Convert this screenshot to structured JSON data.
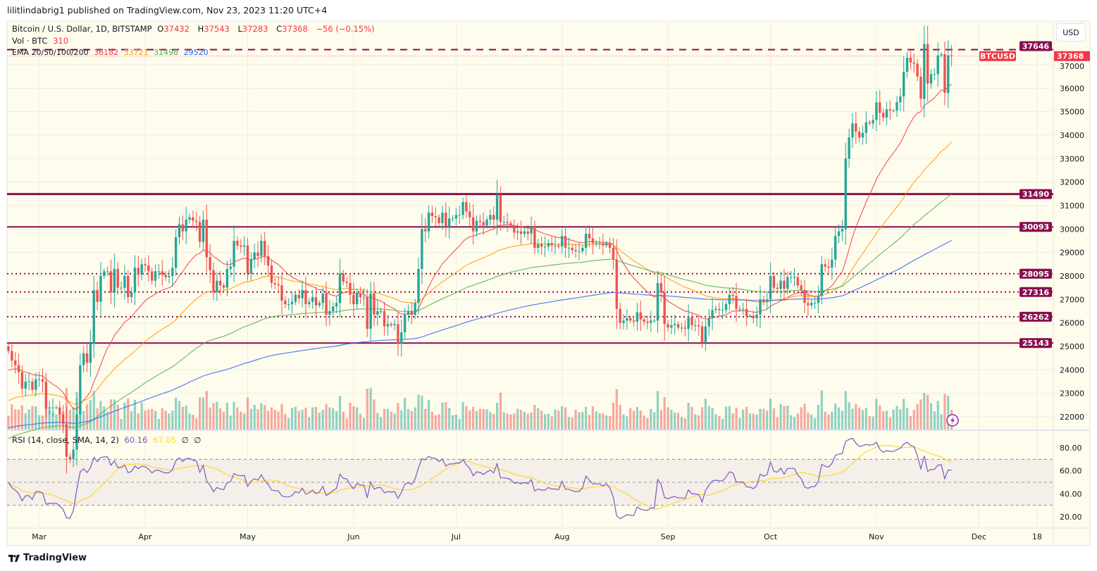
{
  "header": {
    "published": "lilitlindabrig1 published on TradingView.com, Nov 23, 2023 11:20 UTC+4"
  },
  "legend": {
    "symbol": "Bitcoin / U.S. Dollar, 1D, BITSTAMP",
    "o_label": "O",
    "open": "37432",
    "h_label": "H",
    "high": "37543",
    "l_label": "L",
    "low": "37283",
    "c_label": "C",
    "close": "37368",
    "change": "−56 (−0.15%)",
    "vol_label": "Vol · BTC",
    "vol_value": "310",
    "ema_label": "EMA 20/50/100/200",
    "ema_values": [
      "36182",
      "33721",
      "31498",
      "29520"
    ],
    "rsi_label": "RSI (14, close, SMA, 14, 2)",
    "rsi_value": "60.16",
    "rsi_sma": "67.05",
    "rsi_extra1": "∅",
    "rsi_extra2": "∅"
  },
  "currency_button": "USD",
  "footer": {
    "brand": "TradingView"
  },
  "colors": {
    "up": "#26a69a",
    "down": "#ef5350",
    "level": "#880e4f",
    "ema": [
      "#f23645",
      "#ff9800",
      "#4caf50",
      "#2962ff"
    ],
    "rsi": "#7e57c2",
    "rsi_sma": "#fdd835",
    "background": "#fefcec"
  },
  "chart_data": {
    "type": "candlestick",
    "title": "Bitcoin / U.S. Dollar, 1D, BITSTAMP",
    "start_date": "2023-02-20",
    "closes": [
      24800,
      24400,
      24200,
      23900,
      23200,
      23500,
      23500,
      23150,
      23600,
      23600,
      23500,
      22350,
      22400,
      22400,
      22400,
      22100,
      21700,
      20300,
      20200,
      20600,
      22100,
      24200,
      24700,
      24300,
      25100,
      27400,
      26900,
      28000,
      28200,
      28200,
      27300,
      28300,
      27500,
      27500,
      28000,
      27100,
      27300,
      28350,
      28050,
      28500,
      28450,
      28200,
      27800,
      28200,
      28200,
      28050,
      27950,
      28000,
      28350,
      29650,
      30200,
      29900,
      30400,
      30500,
      30350,
      30300,
      29450,
      30400,
      28800,
      28250,
      27300,
      27800,
      27600,
      27500,
      28300,
      28400,
      29500,
      29300,
      29250,
      29300,
      28100,
      28700,
      29000,
      28850,
      29500,
      28850,
      28450,
      27700,
      27650,
      27600,
      26950,
      26800,
      26800,
      26900,
      27200,
      27050,
      27400,
      26800,
      26900,
      27100,
      26750,
      26850,
      27250,
      26350,
      26500,
      26700,
      26850,
      28100,
      27750,
      27700,
      27200,
      26800,
      27250,
      27100,
      27100,
      25750,
      27250,
      26350,
      26500,
      26500,
      25850,
      25950,
      25900,
      25950,
      25100,
      25600,
      26350,
      26500,
      26350,
      26850,
      28300,
      30000,
      29900,
      30700,
      30550,
      30500,
      30250,
      30700,
      30100,
      30450,
      30450,
      30600,
      30600,
      31150,
      30750,
      30500,
      29900,
      30350,
      30300,
      30150,
      30400,
      30600,
      30400,
      31450,
      30300,
      30300,
      30250,
      30150,
      29850,
      29900,
      29800,
      29900,
      29800,
      30100,
      29200,
      29350,
      29250,
      29250,
      29400,
      29300,
      29300,
      29250,
      29700,
      29200,
      29200,
      29100,
      29050,
      29050,
      29200,
      29800,
      29600,
      29400,
      29400,
      29400,
      29300,
      29400,
      29200,
      28700,
      26600,
      26000,
      26100,
      26200,
      26100,
      26050,
      26450,
      26150,
      26050,
      26000,
      26100,
      26100,
      27700,
      27300,
      25950,
      25800,
      25900,
      25950,
      25800,
      25800,
      25750,
      26250,
      25900,
      25900,
      25850,
      25150,
      25850,
      26200,
      26550,
      26600,
      26550,
      26550,
      26800,
      27200,
      27150,
      26600,
      26600,
      26600,
      26300,
      26300,
      26200,
      26350,
      27000,
      26900,
      27000,
      28000,
      27500,
      27450,
      27800,
      27450,
      27950,
      27950,
      27950,
      27600,
      27400,
      26850,
      26750,
      26850,
      26850,
      27150,
      28500,
      28400,
      28350,
      28700,
      29700,
      29900,
      30000,
      33000,
      33900,
      34500,
      34150,
      33900,
      34100,
      34550,
      34500,
      34650,
      35400,
      34950,
      34750,
      35100,
      35050,
      35050,
      35400,
      35650,
      36700,
      37300,
      37100,
      37050,
      36500,
      35550,
      37880,
      36200,
      36600,
      36600,
      37400,
      37450,
      35800,
      37400,
      37368
    ],
    "ema_periods": [
      20,
      50,
      100,
      200
    ],
    "ema_seeds": [
      23900,
      22600,
      21000,
      21500
    ],
    "levels": [
      {
        "price": 37646,
        "style": "dashed"
      },
      {
        "price": 31490,
        "style": "solid-thick"
      },
      {
        "price": 30093,
        "style": "solid"
      },
      {
        "price": 28095,
        "style": "dotted"
      },
      {
        "price": 27316,
        "style": "dotted"
      },
      {
        "price": 26262,
        "style": "dotted"
      },
      {
        "price": 25143,
        "style": "solid"
      }
    ],
    "last_price_label": "BTCUSD",
    "last_price": "37368",
    "y_ticks": [
      "37000",
      "36000",
      "35000",
      "34000",
      "33000",
      "32000",
      "31000",
      "30000",
      "29000",
      "28000",
      "27000",
      "26000",
      "25000",
      "24000",
      "23000",
      "22000"
    ],
    "ylim": [
      21500,
      38000
    ],
    "x_ticks": [
      {
        "label": "Mar",
        "day": 9
      },
      {
        "label": "Apr",
        "day": 40
      },
      {
        "label": "May",
        "day": 70
      },
      {
        "label": "Jun",
        "day": 101
      },
      {
        "label": "Jul",
        "day": 131
      },
      {
        "label": "Aug",
        "day": 162
      },
      {
        "label": "Sep",
        "day": 193
      },
      {
        "label": "Oct",
        "day": 223
      },
      {
        "label": "Nov",
        "day": 254
      },
      {
        "label": "Dec",
        "day": 284
      },
      {
        "label": "18",
        "day": 301
      }
    ],
    "rsi": {
      "period": 14,
      "sma": 14,
      "ticks": [
        "80.00",
        "60.00",
        "40.00",
        "20.00"
      ],
      "bands": [
        70,
        50,
        30
      ],
      "ylim": [
        15,
        85
      ]
    }
  }
}
